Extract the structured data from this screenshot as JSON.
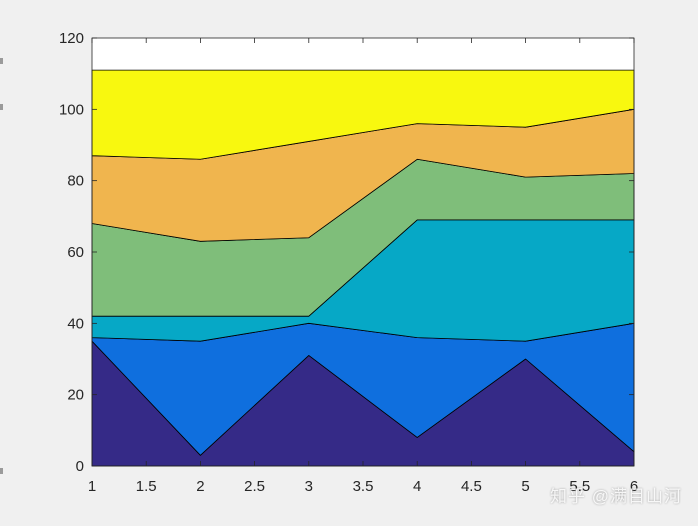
{
  "chart_data": {
    "type": "area",
    "stacked": true,
    "title": "",
    "xlabel": "",
    "ylabel": "",
    "x": [
      1,
      2,
      3,
      4,
      5,
      6
    ],
    "xlim": [
      1,
      6
    ],
    "ylim": [
      0,
      120
    ],
    "xticks": [
      "1",
      "1.5",
      "2",
      "2.5",
      "3",
      "3.5",
      "4",
      "4.5",
      "5",
      "5.5",
      "6"
    ],
    "yticks": [
      "0",
      "20",
      "40",
      "60",
      "80",
      "100",
      "120"
    ],
    "grid": false,
    "legend": "none",
    "series": [
      {
        "values": [
          35,
          3,
          31,
          8,
          30,
          4
        ],
        "color": "#352a87"
      },
      {
        "values": [
          1,
          32,
          9,
          28,
          5,
          36
        ],
        "color": "#0f6fde"
      },
      {
        "values": [
          6,
          7,
          2,
          33,
          34,
          29
        ],
        "color": "#06a8c6"
      },
      {
        "values": [
          26,
          21,
          22,
          17,
          12,
          13
        ],
        "color": "#7fbe7a"
      },
      {
        "values": [
          19,
          23,
          27,
          10,
          14,
          18
        ],
        "color": "#f0b54e"
      },
      {
        "values": [
          24,
          25,
          20,
          15,
          16,
          11
        ],
        "color": "#f8f80f"
      }
    ]
  },
  "watermark": "知乎 @满目山河"
}
